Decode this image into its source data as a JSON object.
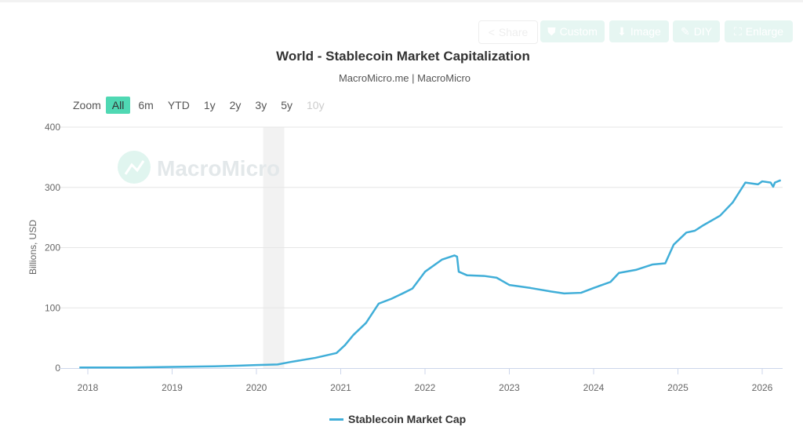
{
  "toolbar": {
    "share": "Share",
    "custom": "Custom",
    "image": "Image",
    "diy": "DIY",
    "enlarge": "Enlarge"
  },
  "zoom": {
    "label": "Zoom",
    "options": [
      "All",
      "6m",
      "YTD",
      "1y",
      "2y",
      "3y",
      "5y",
      "10y"
    ],
    "active": "All",
    "disabled": [
      "10y"
    ]
  },
  "watermark": "MacroMicro",
  "chart_data": {
    "type": "line",
    "title": "World - Stablecoin Market Capitalization",
    "subtitle": "MacroMicro.me | MacroMicro",
    "ylabel": "Billions, USD",
    "xlabel": "",
    "ylim": [
      0,
      400
    ],
    "yticks": [
      0,
      100,
      200,
      300,
      400
    ],
    "xticks": [
      "2018",
      "2019",
      "2020",
      "2021",
      "2022",
      "2023",
      "2024",
      "2025",
      "2026"
    ],
    "xlim": [
      2017.6,
      2026.3
    ],
    "grid": true,
    "legend": "bottom",
    "shaded_band": [
      2020.08,
      2020.33
    ],
    "series": [
      {
        "name": "Stablecoin Market Cap",
        "color": "#40aed8",
        "x": [
          2017.9,
          2018.5,
          2019.0,
          2019.5,
          2019.8,
          2020.0,
          2020.25,
          2020.4,
          2020.7,
          2020.95,
          2021.05,
          2021.15,
          2021.3,
          2021.45,
          2021.6,
          2021.75,
          2021.85,
          2022.0,
          2022.2,
          2022.35,
          2022.38,
          2022.4,
          2022.5,
          2022.7,
          2022.85,
          2023.0,
          2023.25,
          2023.5,
          2023.65,
          2023.85,
          2024.0,
          2024.2,
          2024.3,
          2024.5,
          2024.7,
          2024.85,
          2024.95,
          2025.1,
          2025.2,
          2025.3,
          2025.5,
          2025.65,
          2025.8,
          2025.95,
          2026.0,
          2026.1,
          2026.13,
          2026.15,
          2026.22
        ],
        "values": [
          1,
          1,
          2,
          3,
          4,
          5,
          6,
          10,
          17,
          25,
          38,
          55,
          75,
          107,
          115,
          125,
          132,
          160,
          180,
          187,
          185,
          160,
          154,
          153,
          150,
          138,
          133,
          127,
          124,
          125,
          133,
          143,
          158,
          163,
          172,
          174,
          205,
          225,
          228,
          237,
          253,
          275,
          308,
          305,
          310,
          308,
          301,
          308,
          312
        ]
      }
    ]
  }
}
